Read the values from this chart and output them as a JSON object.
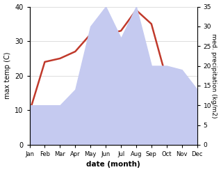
{
  "months": [
    "Jan",
    "Feb",
    "Mar",
    "Apr",
    "May",
    "Jun",
    "Jul",
    "Aug",
    "Sep",
    "Oct",
    "Nov",
    "Dec"
  ],
  "temperature": [
    9.5,
    24,
    25,
    27,
    32,
    32,
    33,
    39,
    35,
    19,
    14,
    13
  ],
  "precipitation": [
    10,
    10,
    10,
    14,
    30,
    35,
    27,
    35,
    20,
    20,
    19,
    14
  ],
  "temp_color": "#c0392b",
  "precip_fill_color": "#c5caf0",
  "temp_ylim": [
    0,
    40
  ],
  "precip_ylim": [
    0,
    35
  ],
  "temp_yticks": [
    0,
    10,
    20,
    30,
    40
  ],
  "precip_yticks": [
    0,
    5,
    10,
    15,
    20,
    25,
    30,
    35
  ],
  "xlabel": "date (month)",
  "ylabel_left": "max temp (C)",
  "ylabel_right": "med. precipitation (kg/m2)",
  "bg_color": "#ffffff",
  "line_width": 1.8,
  "figwidth": 3.18,
  "figheight": 2.47,
  "dpi": 100
}
